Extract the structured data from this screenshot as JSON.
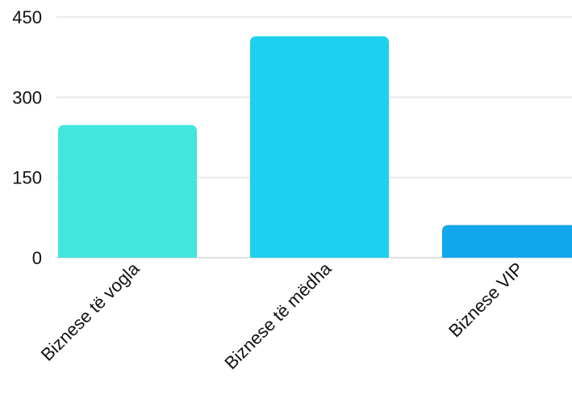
{
  "chart_data": {
    "type": "bar",
    "categories": [
      "Biznese të vogla",
      "Biznese të mëdha",
      "Biznese VIP"
    ],
    "values": [
      248,
      414,
      61
    ],
    "colors": [
      "#43e6dc",
      "#1ed0ef",
      "#12a7ec"
    ],
    "yticks": [
      0,
      150,
      300,
      450
    ],
    "ylim": [
      0,
      450
    ],
    "grid": true,
    "legend": "none"
  }
}
